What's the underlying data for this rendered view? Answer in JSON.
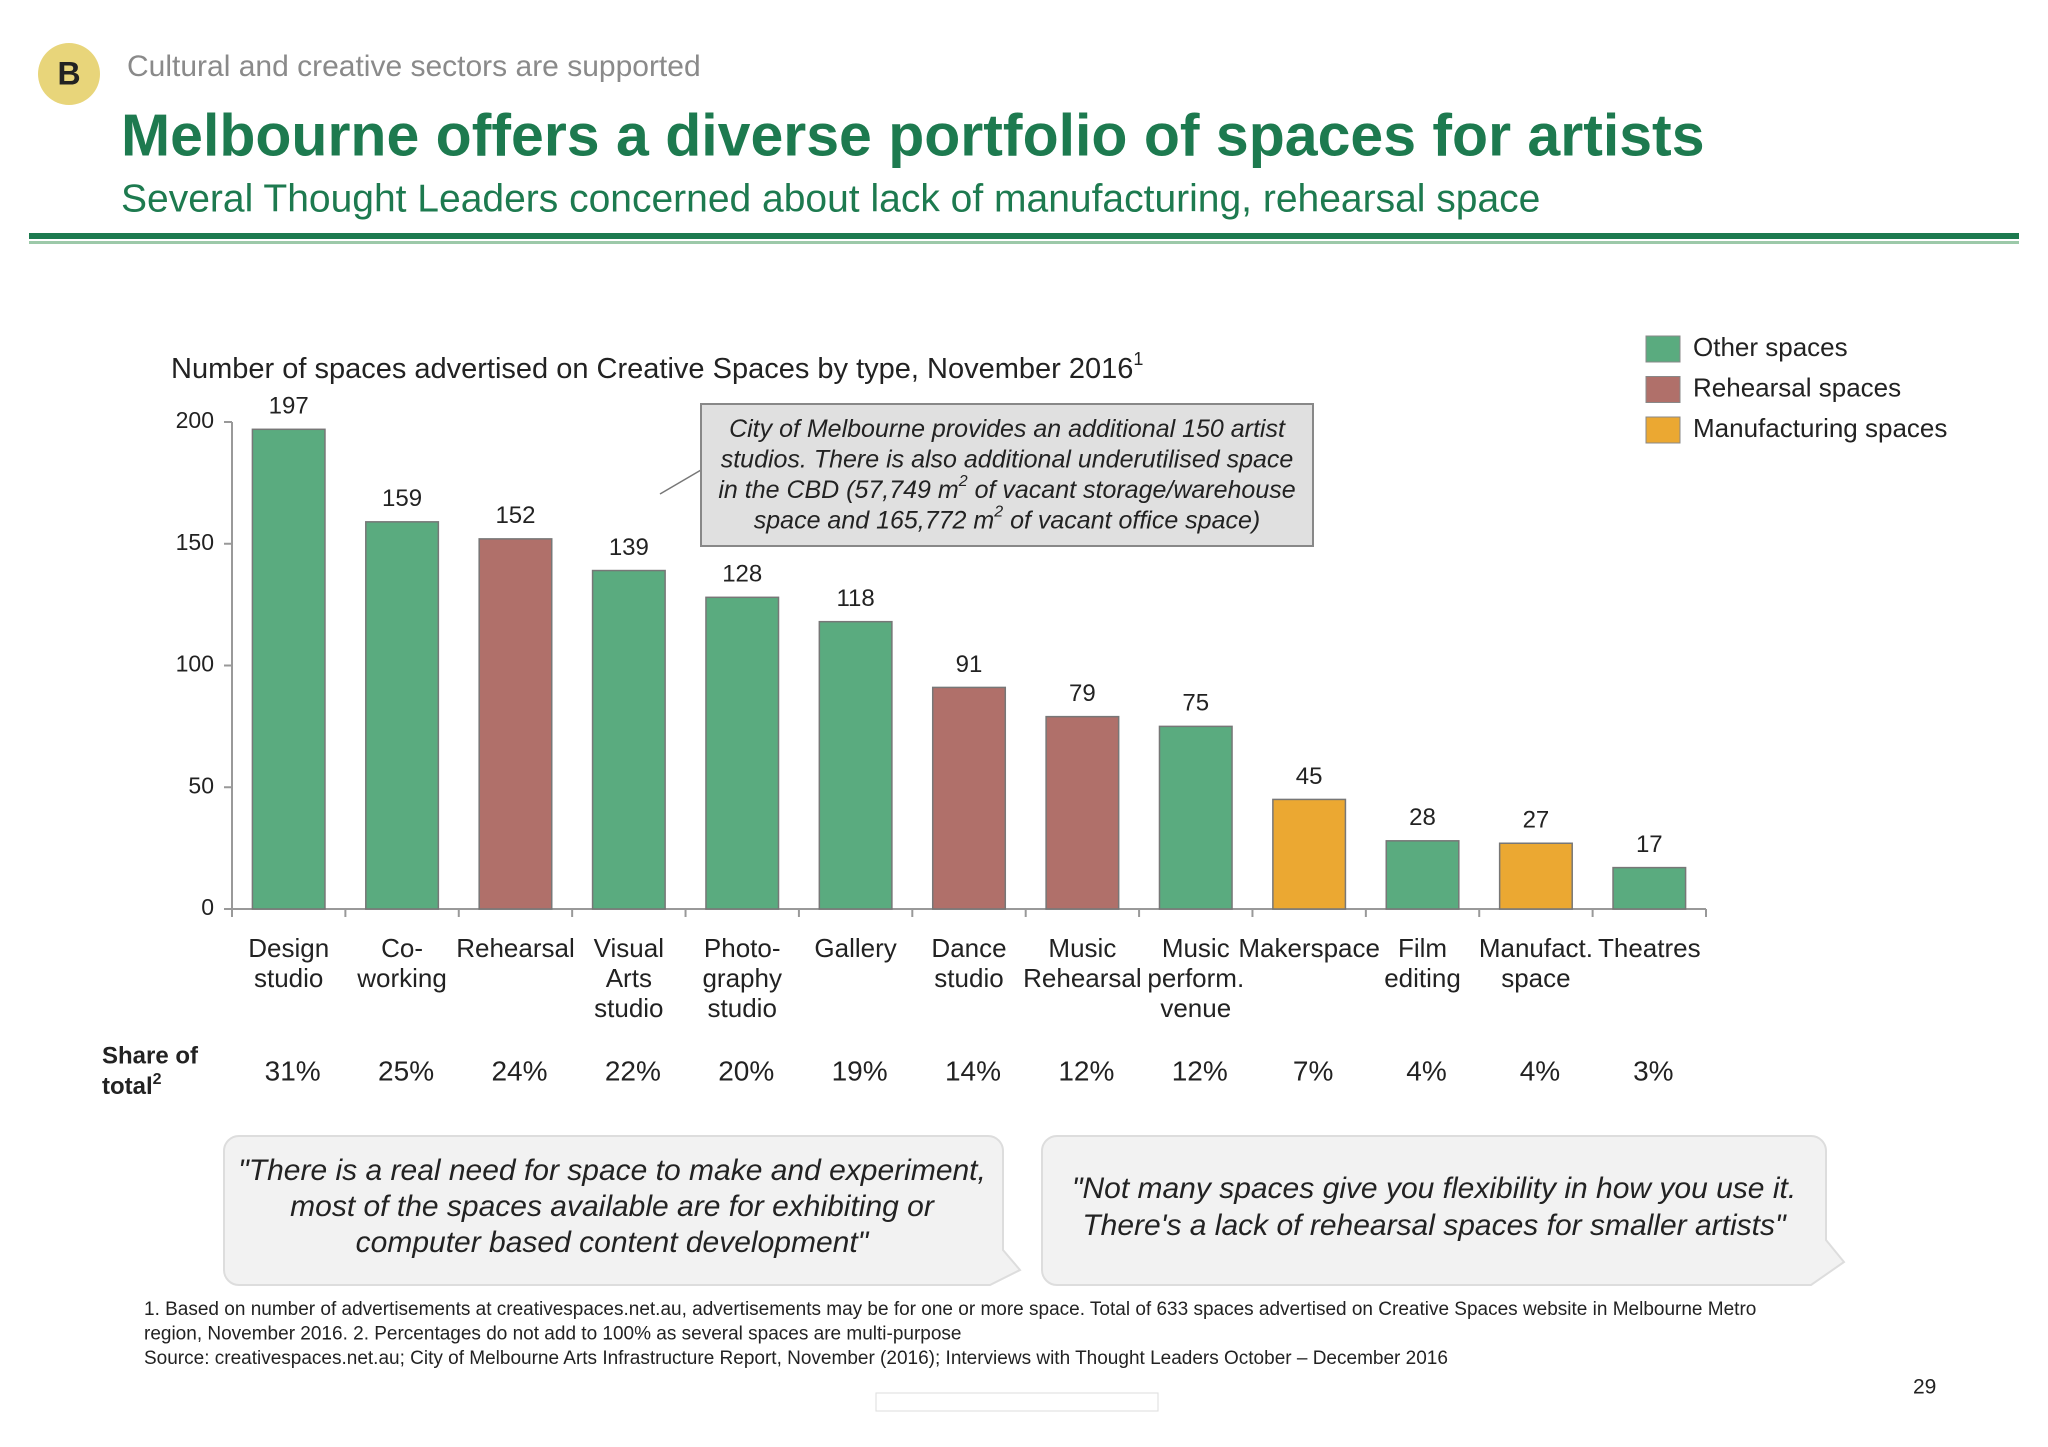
{
  "header": {
    "badge": "B",
    "section": "Cultural and creative sectors are supported",
    "title": "Melbourne offers a diverse portfolio of spaces for artists",
    "subtitle": "Several Thought Leaders concerned about lack of manufacturing, rehearsal space"
  },
  "chart_data": {
    "type": "bar",
    "title": "Number of spaces advertised on Creative Spaces by type, November 2016",
    "title_note": "1",
    "categories": [
      [
        "Design",
        "studio"
      ],
      [
        "Co-",
        "working"
      ],
      [
        "Rehearsal"
      ],
      [
        "Visual",
        "Arts",
        "studio"
      ],
      [
        "Photo-",
        "graphy",
        "studio"
      ],
      [
        "Gallery"
      ],
      [
        "Dance",
        "studio"
      ],
      [
        "Music",
        "Rehearsal"
      ],
      [
        "Music",
        "perform.",
        "venue"
      ],
      [
        "Makerspace"
      ],
      [
        "Film",
        "editing"
      ],
      [
        "Manufact.",
        "space"
      ],
      [
        "Theatres"
      ]
    ],
    "series": [
      {
        "name": "Other spaces",
        "color": "#5aab7f",
        "values": [
          197,
          159,
          null,
          139,
          128,
          118,
          null,
          null,
          75,
          null,
          28,
          null,
          17
        ]
      },
      {
        "name": "Rehearsal spaces",
        "color": "#b0706a",
        "values": [
          null,
          null,
          152,
          null,
          null,
          null,
          91,
          79,
          null,
          null,
          null,
          null,
          null
        ]
      },
      {
        "name": "Manufacturing spaces",
        "color": "#eba832",
        "values": [
          null,
          null,
          null,
          null,
          null,
          null,
          null,
          null,
          null,
          45,
          null,
          27,
          null
        ]
      }
    ],
    "ylim": [
      0,
      200
    ],
    "yticks": [
      0,
      50,
      100,
      150,
      200
    ],
    "grid": false,
    "legend": "top-right",
    "annotation": [
      [
        "City of Melbourne provides an additional 150 artist"
      ],
      [
        "studios. There is also additional underutilised space"
      ],
      [
        "in the CBD (57,749 m",
        "2",
        " of vacant storage/warehouse"
      ],
      [
        "space and 165,772 m",
        "2",
        " of vacant office space)"
      ]
    ],
    "share": {
      "label": [
        "Share of",
        "total"
      ],
      "label_note": "2",
      "values": [
        31,
        25,
        24,
        22,
        20,
        19,
        14,
        12,
        12,
        7,
        4,
        4,
        3
      ],
      "value_labels": [
        "31%",
        "25%",
        "24%",
        "22%",
        "20%",
        "19%",
        "14%",
        "12%",
        "12%",
        "7%",
        "4%",
        "4%",
        "3%"
      ]
    }
  },
  "quotes": [
    [
      "\"There is a real need for space to make and experiment,",
      "most of the spaces available are for exhibiting or",
      "computer based content development\""
    ],
    [
      "\"Not many spaces give you flexibility in how you use it.",
      "There's a lack of rehearsal spaces for smaller artists\""
    ]
  ],
  "footnotes": [
    "1. Based on number of advertisements at creativespaces.net.au, advertisements may be for one or more space. Total of 633 spaces advertised on Creative Spaces website in Melbourne Metro",
    "region, November 2016. 2. Percentages do not add to 100% as several spaces are multi-purpose",
    "Source: creativespaces.net.au; City of Melbourne Arts Infrastructure Report, November (2016); Interviews with Thought Leaders October – December 2016"
  ],
  "page_number": "29"
}
